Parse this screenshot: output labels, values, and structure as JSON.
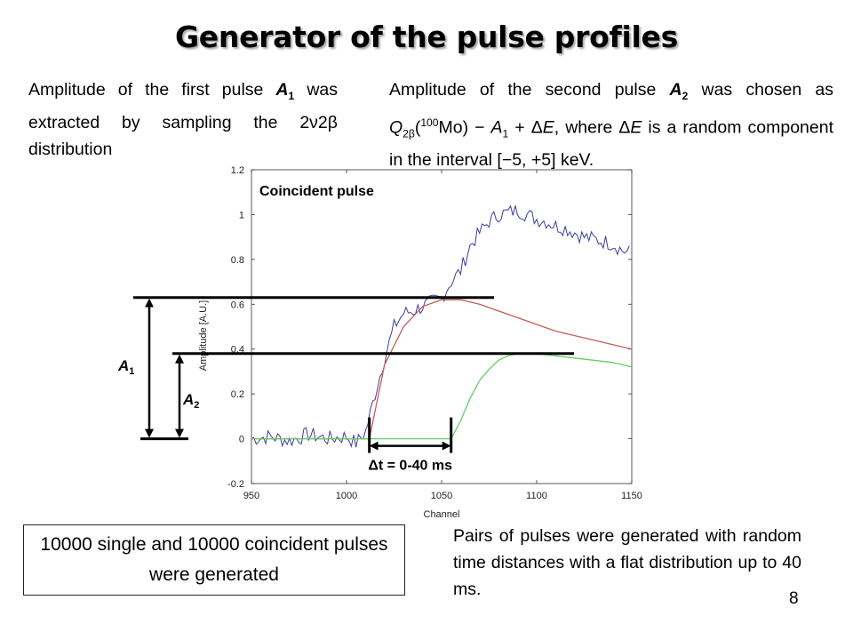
{
  "slide": {
    "title": "Generator of the pulse profiles",
    "page_number": "8",
    "left_text": {
      "pre": "Amplitude of the first pulse ",
      "var": "A",
      "sub": "1",
      "post": " was extracted by sampling the 2ν2β distribution"
    },
    "right_text": {
      "t1": "Amplitude of the second pulse ",
      "v1": "A",
      "s1": "2",
      "t2": " was chosen as ",
      "v2": "Q",
      "s2": "2β",
      "t3": "(",
      "sup3": "100",
      "t4": "Mo) − ",
      "v4": "A",
      "s4": "1",
      "t5": " + Δ",
      "v5": "E",
      "t6": ", where Δ",
      "v6": "E",
      "t7": " is a random component in the interval [−5, +5] keV."
    },
    "boxed_text": "10000 single and 10000 coincident pulses were generated",
    "bottom_text": "Pairs of pulses were generated with random time distances with a flat distribution up to 40 ms."
  },
  "chart_data": {
    "type": "line",
    "xlabel": "Channel",
    "ylabel": "Amplitude [A.U.]",
    "xlim": [
      950,
      1150
    ],
    "ylim": [
      -0.2,
      1.2
    ],
    "x_ticks": [
      "950",
      "1000",
      "1050",
      "1100",
      "1150"
    ],
    "y_ticks": [
      "-0.2",
      "0",
      "0.2",
      "0.4",
      "0.6",
      "0.8",
      "1",
      "1.2"
    ],
    "annotation_title": "Coincident pulse",
    "annotation_dt": "Δt = 0-40 ms",
    "a1_label": {
      "var": "A",
      "sub": "1"
    },
    "a2_label": {
      "var": "A",
      "sub": "2"
    },
    "a1_level": 0.63,
    "a2_level": 0.38,
    "pulse1_start": 1012,
    "pulse2_start": 1055,
    "series": [
      {
        "role": "noisy",
        "color": "#3a3f9a",
        "x": [
          950,
          960,
          970,
          980,
          990,
          1000,
          1005,
          1010,
          1015,
          1020,
          1025,
          1030,
          1035,
          1040,
          1045,
          1050,
          1055,
          1060,
          1065,
          1070,
          1075,
          1080,
          1085,
          1090,
          1095,
          1100,
          1105,
          1110,
          1115,
          1120,
          1125,
          1130,
          1135,
          1140,
          1145,
          1150
        ],
        "y": [
          0.0,
          0.01,
          -0.01,
          0.02,
          0.0,
          0.01,
          -0.02,
          0.03,
          0.2,
          0.36,
          0.5,
          0.56,
          0.57,
          0.59,
          0.61,
          0.63,
          0.7,
          0.75,
          0.86,
          0.92,
          0.97,
          1.0,
          1.01,
          1.02,
          1.0,
          0.98,
          0.97,
          0.95,
          0.94,
          0.92,
          0.9,
          0.89,
          0.88,
          0.87,
          0.84,
          0.83
        ]
      },
      {
        "role": "pulse1",
        "color": "#c65c5c",
        "x": [
          950,
          1000,
          1012,
          1020,
          1030,
          1040,
          1050,
          1060,
          1070,
          1080,
          1090,
          1100,
          1110,
          1120,
          1130,
          1140,
          1150
        ],
        "y": [
          0,
          0,
          0,
          0.33,
          0.5,
          0.59,
          0.62,
          0.62,
          0.6,
          0.57,
          0.54,
          0.51,
          0.48,
          0.46,
          0.44,
          0.42,
          0.4
        ]
      },
      {
        "role": "pulse2",
        "color": "#66cc66",
        "x": [
          950,
          1000,
          1055,
          1060,
          1065,
          1070,
          1075,
          1080,
          1085,
          1090,
          1095,
          1100,
          1110,
          1120,
          1130,
          1140,
          1150
        ],
        "y": [
          0,
          0,
          0,
          0.08,
          0.18,
          0.26,
          0.31,
          0.35,
          0.37,
          0.38,
          0.38,
          0.38,
          0.37,
          0.36,
          0.35,
          0.34,
          0.32
        ]
      }
    ]
  }
}
